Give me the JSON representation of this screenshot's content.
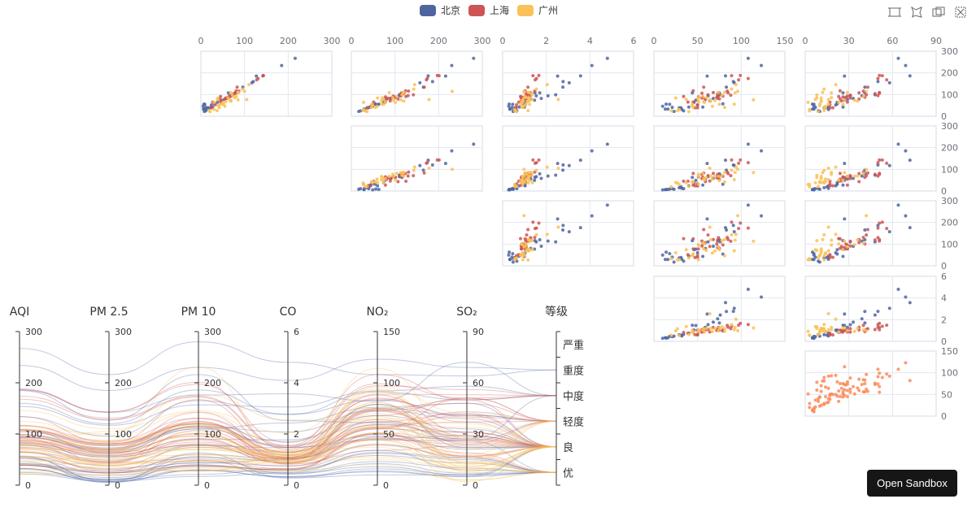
{
  "legend": [
    {
      "name": "北京",
      "color": "#4e65a0"
    },
    {
      "name": "上海",
      "color": "#cd5555"
    },
    {
      "name": "广州",
      "color": "#f9c158"
    }
  ],
  "toolbox": [
    "rect-select-icon",
    "lasso-select-icon",
    "keep-selection-icon",
    "clear-selection-icon"
  ],
  "sandbox_button": "Open Sandbox",
  "chart_data": {
    "type": "scatter-matrix-parallel",
    "dimensions": [
      "AQI",
      "PM 2.5",
      "PM 10",
      "CO",
      "NO₂",
      "SO₂",
      "等级"
    ],
    "ranges": [
      [
        0,
        300
      ],
      [
        0,
        300
      ],
      [
        0,
        300
      ],
      [
        0,
        6
      ],
      [
        0,
        150
      ],
      [
        0,
        90
      ]
    ],
    "tick_labels": [
      [
        "0",
        "100",
        "200",
        "300"
      ],
      [
        "0",
        "100",
        "200",
        "300"
      ],
      [
        "0",
        "100",
        "200",
        "300"
      ],
      [
        "0",
        "2",
        "4",
        "6"
      ],
      [
        "0",
        "50",
        "100",
        "150"
      ],
      [
        "0",
        "30",
        "60",
        "90"
      ]
    ],
    "grade_categories": [
      "优",
      "良",
      "轻度",
      "中度",
      "重度",
      "严重"
    ],
    "matrix_highlight_color": "#f98c5c",
    "grid": true,
    "legend_position": "top-center",
    "series": [
      {
        "name": "北京",
        "values": [
          [
            55,
            9,
            56,
            0.46,
            18,
            6,
            "良"
          ],
          [
            25,
            11,
            21,
            0.65,
            34,
            9,
            "优"
          ],
          [
            56,
            7,
            63,
            0.3,
            14,
            5,
            "良"
          ],
          [
            33,
            7,
            29,
            0.33,
            16,
            6,
            "优"
          ],
          [
            42,
            24,
            44,
            0.76,
            40,
            16,
            "优"
          ],
          [
            82,
            58,
            90,
            1.77,
            68,
            33,
            "良"
          ],
          [
            74,
            49,
            77,
            1.46,
            48,
            27,
            "良"
          ],
          [
            78,
            55,
            80,
            1.29,
            59,
            29,
            "良"
          ],
          [
            267,
            216,
            280,
            4.8,
            108,
            64,
            "重度"
          ],
          [
            185,
            127,
            216,
            2.52,
            61,
            27,
            "中度"
          ],
          [
            39,
            19,
            38,
            0.57,
            31,
            15,
            "优"
          ],
          [
            41,
            11,
            40,
            0.43,
            21,
            7,
            "优"
          ],
          [
            64,
            38,
            74,
            1.04,
            46,
            22,
            "良"
          ],
          [
            108,
            79,
            120,
            1.7,
            75,
            41,
            "轻度"
          ],
          [
            108,
            63,
            116,
            1.48,
            44,
            26,
            "轻度"
          ],
          [
            33,
            6,
            29,
            0.34,
            13,
            5,
            "优"
          ],
          [
            94,
            66,
            110,
            1.54,
            62,
            31,
            "良"
          ],
          [
            186,
            142,
            176,
            3.57,
            82,
            72,
            "中度"
          ],
          [
            57,
            31,
            54,
            0.96,
            79,
            22,
            "良"
          ],
          [
            22,
            8,
            17,
            0.48,
            23,
            10,
            "优"
          ],
          [
            39,
            15,
            36,
            0.61,
            29,
            13,
            "优"
          ],
          [
            94,
            69,
            114,
            2.08,
            73,
            39,
            "良"
          ],
          [
            99,
            73,
            110,
            2.43,
            76,
            48,
            "良"
          ],
          [
            31,
            12,
            30,
            0.5,
            32,
            16,
            "优"
          ],
          [
            42,
            27,
            43,
            1,
            56,
            26,
            "优"
          ],
          [
            154,
            117,
            157,
            3.05,
            92,
            58,
            "中度"
          ],
          [
            234,
            185,
            230,
            4.09,
            123,
            69,
            "重度"
          ],
          [
            160,
            120,
            186,
            2.77,
            91,
            50,
            "中度"
          ],
          [
            134,
            96,
            165,
            2.76,
            83,
            41,
            "轻度"
          ],
          [
            52,
            24,
            60,
            1.03,
            50,
            21,
            "良"
          ],
          [
            46,
            5,
            49,
            0.28,
            10,
            6,
            "优"
          ]
        ]
      },
      {
        "name": "上海",
        "values": [
          [
            91,
            45,
            125,
            0.82,
            34,
            23,
            "良"
          ],
          [
            65,
            27,
            78,
            0.86,
            45,
            29,
            "良"
          ],
          [
            83,
            60,
            84,
            1.09,
            73,
            27,
            "良"
          ],
          [
            109,
            81,
            121,
            1.28,
            68,
            51,
            "轻度"
          ],
          [
            106,
            77,
            114,
            1.07,
            55,
            51,
            "轻度"
          ],
          [
            89,
            65,
            78,
            0.86,
            51,
            26,
            "良"
          ],
          [
            53,
            33,
            47,
            0.64,
            50,
            17,
            "良"
          ],
          [
            80,
            55,
            80,
            1.01,
            75,
            24,
            "良"
          ],
          [
            117,
            81,
            124,
            1.03,
            45,
            24,
            "轻度"
          ],
          [
            99,
            71,
            142,
            1.1,
            62,
            42,
            "良"
          ],
          [
            95,
            69,
            130,
            1.28,
            74,
            50,
            "良"
          ],
          [
            116,
            87,
            131,
            1.47,
            84,
            40,
            "轻度"
          ],
          [
            108,
            80,
            121,
            1.3,
            85,
            37,
            "轻度"
          ],
          [
            134,
            83,
            167,
            1.16,
            57,
            43,
            "轻度"
          ],
          [
            79,
            43,
            107,
            1.05,
            59,
            37,
            "良"
          ],
          [
            71,
            46,
            89,
            0.86,
            64,
            25,
            "良"
          ],
          [
            97,
            71,
            113,
            1.17,
            88,
            31,
            "良"
          ],
          [
            84,
            57,
            91,
            0.85,
            55,
            31,
            "良"
          ],
          [
            87,
            63,
            101,
            0.9,
            56,
            41,
            "良"
          ],
          [
            104,
            77,
            119,
            1.09,
            73,
            48,
            "轻度"
          ],
          [
            87,
            62,
            100,
            1,
            72,
            28,
            "良"
          ],
          [
            168,
            128,
            172,
            1.49,
            97,
            56,
            "中度"
          ],
          [
            65,
            45,
            51,
            0.74,
            39,
            17,
            "良"
          ],
          [
            39,
            24,
            38,
            0.61,
            47,
            17,
            "优"
          ],
          [
            39,
            24,
            39,
            0.59,
            50,
            19,
            "优"
          ],
          [
            93,
            68,
            96,
            1.05,
            79,
            29,
            "良"
          ],
          [
            188,
            143,
            197,
            1.66,
            99,
            51,
            "中度"
          ],
          [
            174,
            131,
            174,
            1.55,
            108,
            50,
            "中度"
          ],
          [
            187,
            143,
            201,
            1.39,
            89,
            53,
            "中度"
          ]
        ]
      },
      {
        "name": "广州",
        "values": [
          [
            26,
            37,
            27,
            1.163,
            27,
            13,
            "优"
          ],
          [
            85,
            62,
            71,
            1.195,
            60,
            8,
            "良"
          ],
          [
            78,
            38,
            74,
            1.363,
            37,
            7,
            "良"
          ],
          [
            21,
            21,
            36,
            0.634,
            40,
            9,
            "优"
          ],
          [
            41,
            42,
            46,
            0.915,
            81,
            13,
            "优"
          ],
          [
            56,
            52,
            69,
            1.067,
            92,
            16,
            "良"
          ],
          [
            64,
            30,
            28,
            0.924,
            51,
            2,
            "良"
          ],
          [
            55,
            48,
            74,
            1.236,
            75,
            26,
            "良"
          ],
          [
            76,
            85,
            113,
            1.237,
            114,
            27,
            "良"
          ],
          [
            91,
            81,
            104,
            1.041,
            56,
            40,
            "良"
          ],
          [
            84,
            39,
            60,
            0.964,
            25,
            11,
            "良"
          ],
          [
            64,
            51,
            101,
            0.862,
            58,
            23,
            "良"
          ],
          [
            70,
            69,
            120,
            1.198,
            65,
            36,
            "良"
          ],
          [
            77,
            105,
            178,
            2.549,
            64,
            16,
            "良"
          ],
          [
            109,
            68,
            87,
            0.996,
            74,
            29,
            "轻度"
          ],
          [
            73,
            68,
            97,
            0.905,
            51,
            34,
            "良"
          ],
          [
            86,
            77,
            95,
            1.081,
            51,
            18,
            "良"
          ],
          [
            31,
            30,
            28,
            0.548,
            29,
            3,
            "优"
          ],
          [
            46,
            55,
            59,
            0.913,
            67,
            14,
            "优"
          ],
          [
            72,
            67,
            69,
            1.197,
            70,
            11,
            "良"
          ],
          [
            56,
            43,
            48,
            0.82,
            44,
            10,
            "良"
          ],
          [
            49,
            40,
            48,
            1.003,
            44,
            10,
            "优"
          ],
          [
            110,
            85,
            121,
            1.18,
            81,
            12,
            "轻度"
          ],
          [
            108,
            86,
            118,
            1.291,
            93,
            18,
            "轻度"
          ],
          [
            98,
            72,
            116,
            1.345,
            78,
            8,
            "良"
          ],
          [
            125,
            95,
            143,
            1.547,
            89,
            13,
            "轻度"
          ],
          [
            146,
            110,
            145,
            2.042,
            94,
            21,
            "轻度"
          ],
          [
            25,
            19,
            33,
            0.57,
            20,
            3,
            "优"
          ],
          [
            41,
            42,
            55,
            0.89,
            45,
            14,
            "优"
          ],
          [
            67,
            57,
            78,
            1.13,
            57,
            11,
            "良"
          ],
          [
            115,
            100,
            231,
            0.98,
            96,
            42,
            "轻度"
          ]
        ]
      }
    ]
  }
}
